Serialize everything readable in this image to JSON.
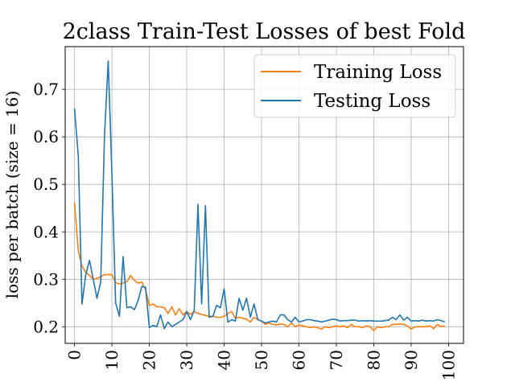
{
  "chart_data": {
    "type": "line",
    "title": "2class Train-Test Losses of best Fold",
    "xlabel": "",
    "ylabel": "loss per batch (size = 16)",
    "xlim": [
      -2.5,
      104
    ],
    "ylim": [
      0.165,
      0.79
    ],
    "xticks": [
      0,
      10,
      20,
      30,
      40,
      50,
      60,
      70,
      80,
      90,
      100
    ],
    "yticks": [
      0.2,
      0.3,
      0.4,
      0.5,
      0.6,
      0.7
    ],
    "grid": true,
    "legend_position": "top-right",
    "series": [
      {
        "name": "Training Loss",
        "color": "#ff7f0e",
        "x": [
          0,
          1,
          2,
          3,
          4,
          5,
          6,
          7,
          8,
          9,
          10,
          11,
          12,
          13,
          14,
          15,
          16,
          17,
          18,
          19,
          20,
          21,
          22,
          23,
          24,
          25,
          26,
          27,
          28,
          29,
          30,
          31,
          32,
          33,
          34,
          35,
          36,
          37,
          38,
          39,
          40,
          41,
          42,
          43,
          44,
          45,
          46,
          47,
          48,
          49,
          50,
          51,
          52,
          53,
          54,
          55,
          56,
          57,
          58,
          59,
          60,
          61,
          62,
          63,
          64,
          65,
          66,
          67,
          68,
          69,
          70,
          71,
          72,
          73,
          74,
          75,
          76,
          77,
          78,
          79,
          80,
          81,
          82,
          83,
          84,
          85,
          86,
          87,
          88,
          89,
          90,
          91,
          92,
          93,
          94,
          95,
          96,
          97,
          98,
          99
        ],
        "y": [
          0.462,
          0.36,
          0.328,
          0.315,
          0.308,
          0.3,
          0.302,
          0.305,
          0.31,
          0.31,
          0.31,
          0.293,
          0.29,
          0.292,
          0.295,
          0.308,
          0.298,
          0.292,
          0.294,
          0.278,
          0.245,
          0.248,
          0.242,
          0.242,
          0.24,
          0.228,
          0.242,
          0.225,
          0.238,
          0.225,
          0.232,
          0.226,
          0.232,
          0.228,
          0.226,
          0.224,
          0.222,
          0.222,
          0.22,
          0.22,
          0.222,
          0.228,
          0.232,
          0.218,
          0.22,
          0.218,
          0.216,
          0.21,
          0.22,
          0.215,
          0.212,
          0.205,
          0.208,
          0.205,
          0.204,
          0.206,
          0.205,
          0.2,
          0.208,
          0.2,
          0.204,
          0.202,
          0.2,
          0.198,
          0.2,
          0.198,
          0.195,
          0.2,
          0.198,
          0.2,
          0.202,
          0.2,
          0.202,
          0.198,
          0.205,
          0.2,
          0.2,
          0.198,
          0.202,
          0.2,
          0.192,
          0.2,
          0.198,
          0.2,
          0.2,
          0.205,
          0.205,
          0.206,
          0.205,
          0.202,
          0.195,
          0.2,
          0.2,
          0.2,
          0.2,
          0.202,
          0.196,
          0.205,
          0.2,
          0.202
        ]
      },
      {
        "name": "Testing Loss",
        "color": "#1f77b4",
        "x": [
          0,
          1,
          2,
          3,
          4,
          5,
          6,
          7,
          8,
          9,
          10,
          11,
          12,
          13,
          14,
          15,
          16,
          17,
          18,
          19,
          20,
          21,
          22,
          23,
          24,
          25,
          26,
          27,
          28,
          29,
          30,
          31,
          32,
          33,
          34,
          35,
          36,
          37,
          38,
          39,
          40,
          41,
          42,
          43,
          44,
          45,
          46,
          47,
          48,
          49,
          50,
          51,
          52,
          53,
          54,
          55,
          56,
          57,
          58,
          59,
          60,
          61,
          62,
          63,
          64,
          65,
          66,
          67,
          68,
          69,
          70,
          71,
          72,
          73,
          74,
          75,
          76,
          77,
          78,
          79,
          80,
          81,
          82,
          83,
          84,
          85,
          86,
          87,
          88,
          89,
          90,
          91,
          92,
          93,
          94,
          95,
          96,
          97,
          98,
          99
        ],
        "y": [
          0.66,
          0.56,
          0.248,
          0.31,
          0.34,
          0.3,
          0.26,
          0.295,
          0.6,
          0.76,
          0.52,
          0.25,
          0.222,
          0.348,
          0.24,
          0.242,
          0.236,
          0.255,
          0.285,
          0.283,
          0.198,
          0.203,
          0.2,
          0.225,
          0.196,
          0.21,
          0.2,
          0.205,
          0.21,
          0.215,
          0.232,
          0.215,
          0.235,
          0.458,
          0.248,
          0.455,
          0.22,
          0.222,
          0.245,
          0.24,
          0.28,
          0.21,
          0.215,
          0.212,
          0.26,
          0.235,
          0.26,
          0.22,
          0.248,
          0.215,
          0.212,
          0.208,
          0.21,
          0.212,
          0.21,
          0.225,
          0.225,
          0.215,
          0.21,
          0.22,
          0.21,
          0.212,
          0.215,
          0.215,
          0.213,
          0.212,
          0.21,
          0.212,
          0.214,
          0.216,
          0.215,
          0.212,
          0.213,
          0.213,
          0.214,
          0.214,
          0.212,
          0.213,
          0.212,
          0.213,
          0.212,
          0.212,
          0.212,
          0.213,
          0.214,
          0.22,
          0.215,
          0.225,
          0.214,
          0.22,
          0.212,
          0.213,
          0.212,
          0.214,
          0.212,
          0.213,
          0.212,
          0.215,
          0.213,
          0.21
        ]
      }
    ]
  }
}
